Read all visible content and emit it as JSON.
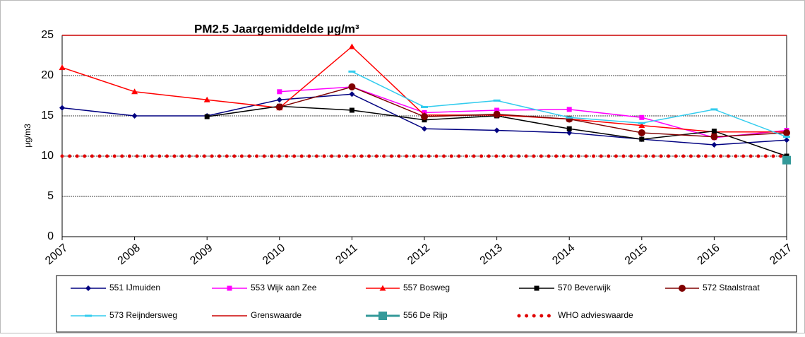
{
  "chart_data": {
    "type": "line",
    "title": "PM2.5 Jaargemiddelde µg/m³",
    "y_label": "µg/m3",
    "categories": [
      "2007",
      "2008",
      "2009",
      "2010",
      "2011",
      "2012",
      "2013",
      "2014",
      "2015",
      "2016",
      "2017"
    ],
    "ylim": [
      0,
      25
    ],
    "yticks": [
      0,
      5,
      10,
      15,
      20,
      25
    ],
    "grid": true,
    "legend": "bottom",
    "series": [
      {
        "name": "551 IJmuiden",
        "color": "#000080",
        "marker": "diamond",
        "values": [
          16,
          15,
          15,
          17,
          17.7,
          13.4,
          13.2,
          12.9,
          12.1,
          11.4,
          12
        ]
      },
      {
        "name": "553 Wijk aan Zee",
        "color": "#ff00ff",
        "marker": "square",
        "values": [
          null,
          null,
          null,
          18,
          18.6,
          15.4,
          15.7,
          15.8,
          14.8,
          12.3,
          13.2
        ]
      },
      {
        "name": "557 Bosweg",
        "color": "#ff0000",
        "marker": "triangle",
        "values": [
          21,
          18,
          17,
          16,
          23.6,
          15.1,
          15.1,
          14.6,
          13.8,
          13,
          13
        ]
      },
      {
        "name": "570 Beverwijk",
        "color": "#000000",
        "marker": "square",
        "values": [
          null,
          null,
          14.9,
          16.2,
          15.7,
          14.5,
          15,
          13.4,
          12.1,
          13.1,
          10
        ]
      },
      {
        "name": "572 Staalstraat",
        "color": "#800000",
        "marker": "circle",
        "values": [
          null,
          null,
          null,
          16.1,
          18.6,
          14.9,
          15.2,
          14.6,
          12.9,
          12.4,
          12.9
        ]
      },
      {
        "name": "573 Reijndersweg",
        "color": "#33ccee",
        "marker": "dash",
        "values": [
          null,
          null,
          null,
          null,
          20.5,
          16.1,
          16.9,
          14.8,
          14.1,
          15.8,
          12.4
        ]
      },
      {
        "name": "Grenswaarde",
        "color": "#cc0000",
        "marker": "none",
        "values": [
          25,
          25,
          25,
          25,
          25,
          25,
          25,
          25,
          25,
          25,
          25
        ]
      },
      {
        "name": "556 De Rijp",
        "color": "#339999",
        "marker": "bigsquare",
        "values": [
          null,
          null,
          null,
          null,
          null,
          null,
          null,
          null,
          null,
          null,
          9.5
        ]
      },
      {
        "name": "WHO advieswaarde",
        "color": "#e00000",
        "marker": "none",
        "dash": "dotted",
        "values": [
          10,
          10,
          10,
          10,
          10,
          10,
          10,
          10,
          10,
          10,
          10
        ]
      }
    ]
  }
}
